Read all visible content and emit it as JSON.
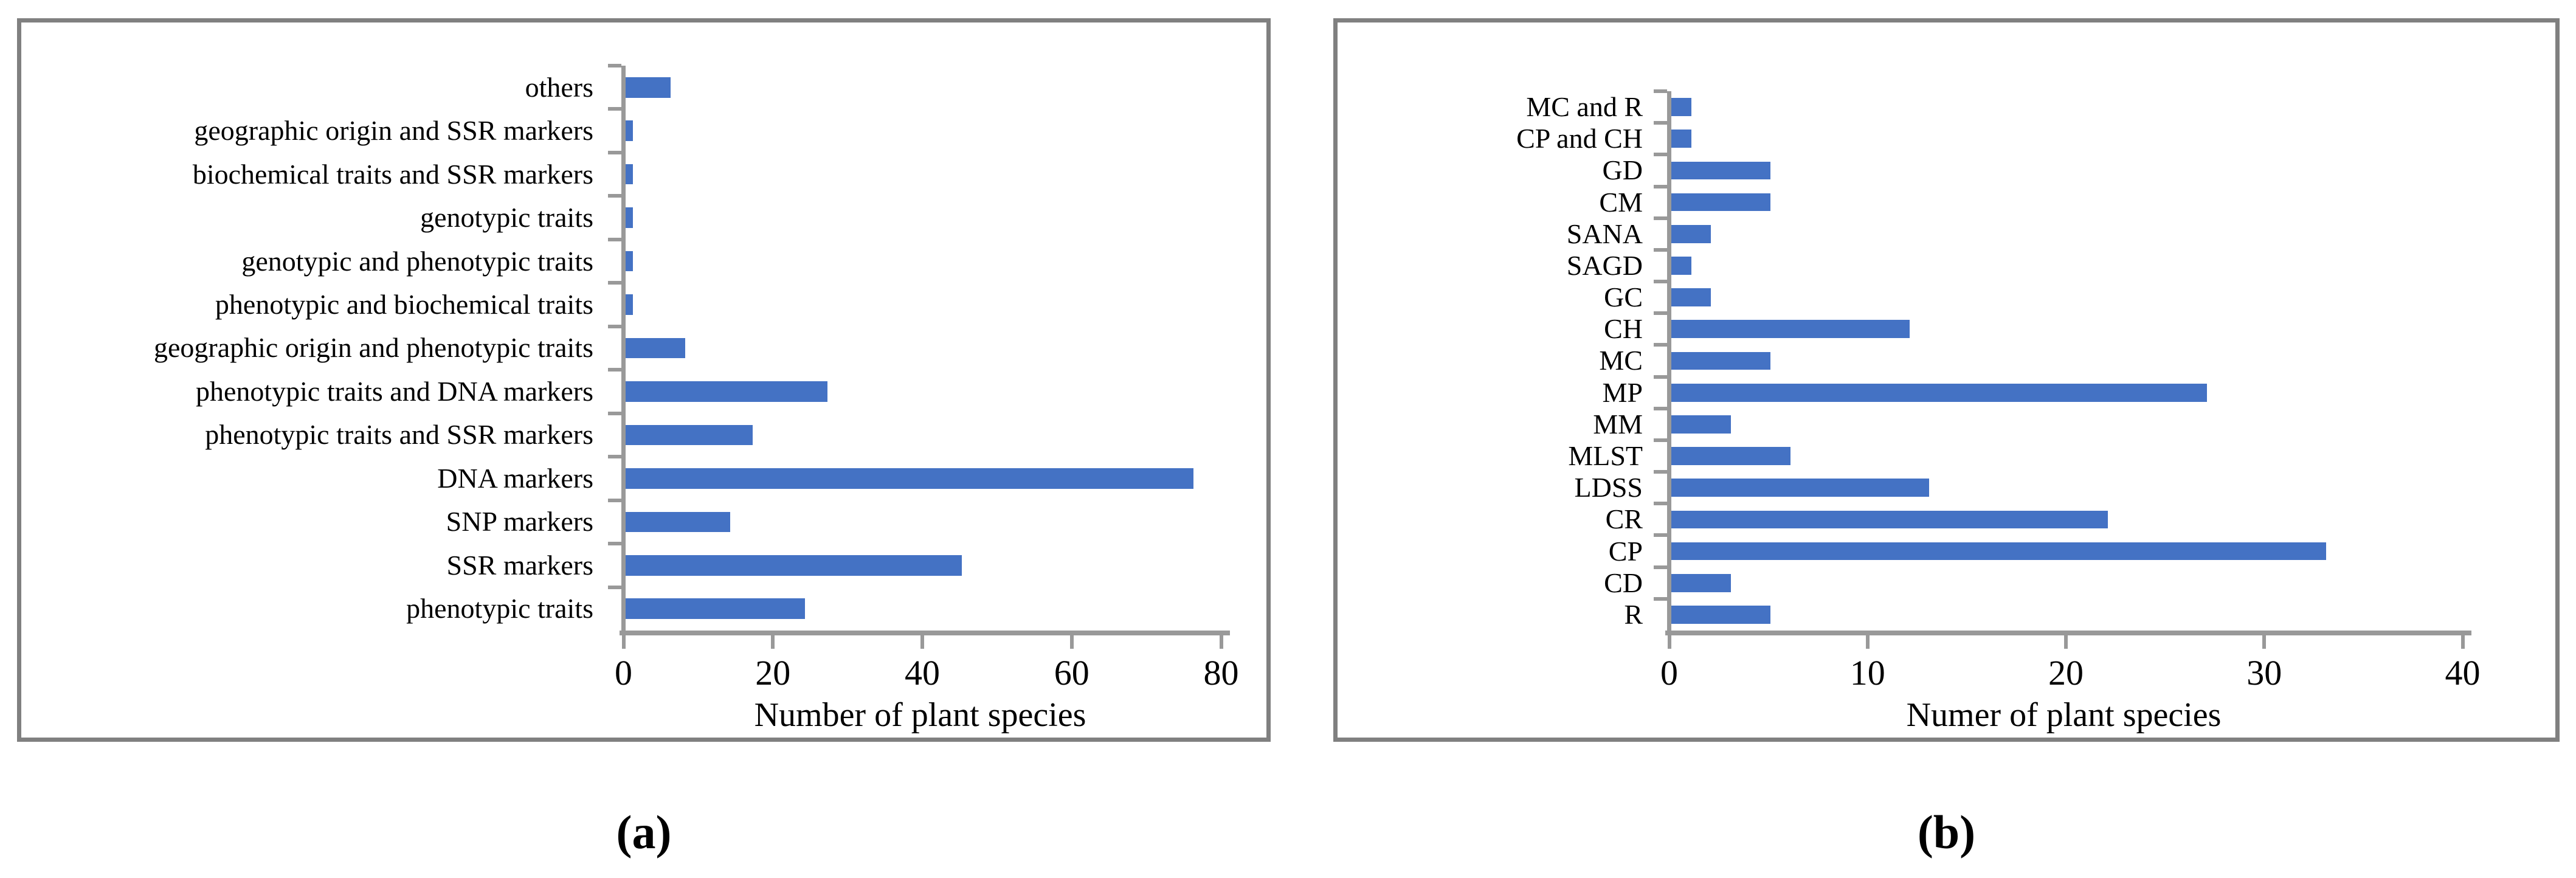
{
  "figure": {
    "panel_a_caption": "(a)",
    "panel_b_caption": "(b)",
    "background_color": "#ffffff",
    "panel_border_color": "#808080",
    "axis_color": "#999999",
    "bar_color": "#4472c4"
  },
  "chart_data": [
    {
      "type": "bar",
      "orientation": "horizontal",
      "panel": "a",
      "title": "",
      "xlabel": "Number of  plant species",
      "ylabel": "",
      "categories": [
        "others",
        "geographic origin and SSR markers",
        "biochemical traits and SSR markers",
        "genotypic traits",
        "genotypic and phenotypic traits",
        "phenotypic and biochemical traits",
        "geographic origin and phenotypic traits",
        "phenotypic traits and DNA markers",
        "phenotypic traits and SSR markers",
        "DNA markers",
        "SNP markers",
        "SSR markers",
        "phenotypic traits"
      ],
      "values": [
        6,
        1,
        1,
        1,
        1,
        1,
        8,
        27,
        17,
        76,
        14,
        45,
        24
      ],
      "xlim": [
        0,
        80
      ],
      "xticks": [
        0,
        20,
        40,
        60,
        80
      ],
      "bar_color": "#4472c4",
      "grid": false,
      "legend": "none"
    },
    {
      "type": "bar",
      "orientation": "horizontal",
      "panel": "b",
      "title": "",
      "xlabel": "Numer of plant species",
      "ylabel": "",
      "categories": [
        "MC and R",
        "CP and CH",
        "GD",
        "CM",
        "SANA",
        "SAGD",
        "GC",
        "CH",
        "MC",
        "MP",
        "MM",
        "MLST",
        "LDSS",
        "CR",
        "CP",
        "CD",
        "R"
      ],
      "values": [
        1,
        1,
        5,
        5,
        2,
        1,
        2,
        12,
        5,
        27,
        3,
        6,
        13,
        22,
        33,
        3,
        5
      ],
      "xlim": [
        0,
        40
      ],
      "xticks": [
        0,
        10,
        20,
        30,
        40
      ],
      "bar_color": "#4472c4",
      "grid": false,
      "legend": "none"
    }
  ]
}
